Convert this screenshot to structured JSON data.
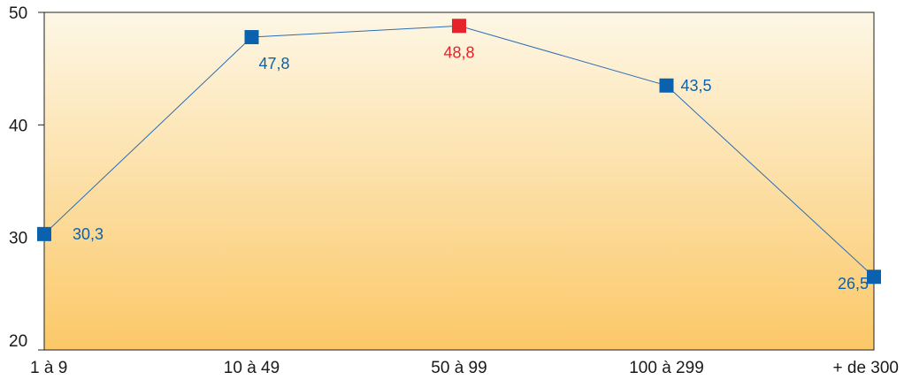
{
  "chart_data": {
    "type": "line",
    "title": "",
    "xlabel": "",
    "ylabel": "",
    "categories": [
      "1 à 9",
      "10 à 49",
      "50 à 99",
      "100 à 299",
      "+ de 300"
    ],
    "series": [
      {
        "values": [
          30.3,
          47.8,
          48.8,
          43.5,
          26.5
        ],
        "labels": [
          "30,3",
          "47,8",
          "48,8",
          "43,5",
          "26,5"
        ]
      }
    ],
    "ylim": [
      20,
      50
    ],
    "yticks": [
      20,
      30,
      40,
      50
    ],
    "highlight_index": 2,
    "grid": false,
    "colors": {
      "line": "#2a6db5",
      "marker": "#0a62ae",
      "highlight": "#e4232b",
      "label": "#0a62ae",
      "highlight_label": "#e4232b",
      "background_top": "#fdf7e6",
      "background_bottom": "#fcc867"
    }
  }
}
